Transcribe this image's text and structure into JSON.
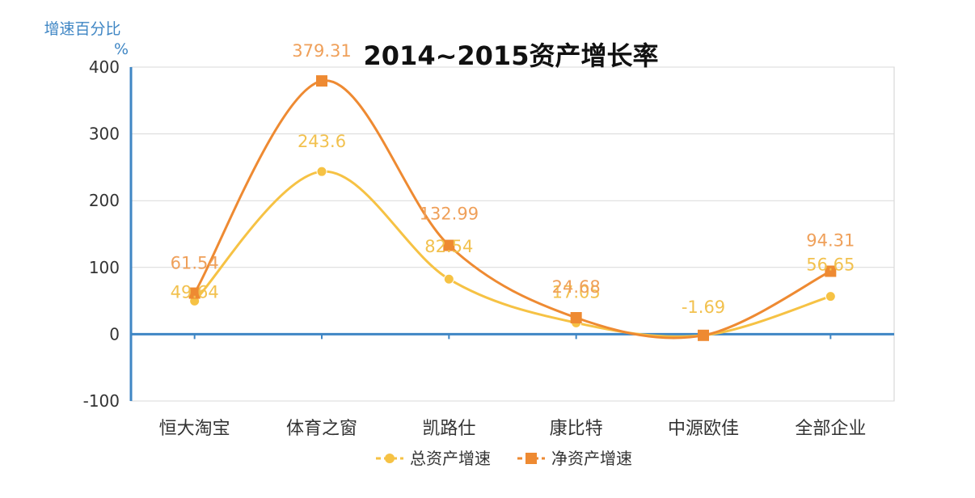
{
  "chart_data": {
    "type": "line",
    "title": "2014~2015资产增长率",
    "ylabel_line1": "增速百分比",
    "ylabel_line2": "%",
    "categories": [
      "恒大淘宝",
      "体育之窗",
      "凯路仕",
      "康比特",
      "中源欧佳",
      "全部企业"
    ],
    "ylim": [
      -100,
      400
    ],
    "yticks": [
      400,
      300,
      200,
      100,
      0,
      -100
    ],
    "grid": true,
    "legend_position": "bottom",
    "smooth": true,
    "series": [
      {
        "name": "总资产增速",
        "values": [
          49.64,
          243.6,
          82.54,
          17.05,
          -1.69,
          56.65
        ],
        "labels": [
          "49.64",
          "243.6",
          "82.54",
          "17.05",
          "-1.69",
          "56.65"
        ],
        "marker": "circle",
        "color": "#F6C244",
        "label_color": "#F2C14E"
      },
      {
        "name": "净资产增速",
        "values": [
          61.54,
          379.31,
          132.99,
          24.68,
          -1.69,
          94.31
        ],
        "labels": [
          "61.54",
          "379.31",
          "132.99",
          "24.68",
          "",
          "94.31"
        ],
        "marker": "square",
        "color": "#EE8A32",
        "label_color": "#EFA05A"
      }
    ],
    "colors": {
      "axis": "#3F86C4",
      "axis_label": "#3F86C4",
      "grid": "#D9D9D9",
      "plot_border": "#D0D0D0",
      "tick_text": "#333333",
      "title_text": "#111111"
    }
  }
}
